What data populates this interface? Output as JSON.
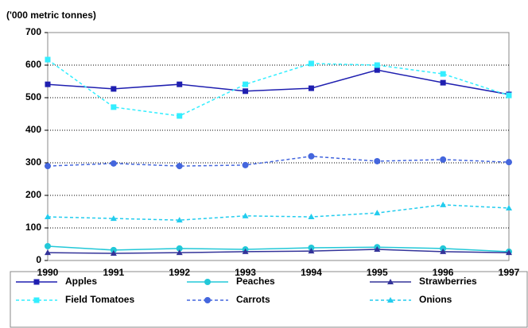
{
  "chart_data": {
    "type": "line",
    "y_axis_label": "('000 metric tonnes)",
    "categories": [
      "1990",
      "1991",
      "1992",
      "1993",
      "1994",
      "1995",
      "1996",
      "1997"
    ],
    "ylim": [
      0,
      700
    ],
    "yticks": [
      0,
      100,
      200,
      300,
      400,
      500,
      600,
      700
    ],
    "grid": true,
    "legend": "bottom",
    "series": [
      {
        "name": "Apples",
        "color": "#1f1fb0",
        "dash": "solid",
        "marker": "square",
        "values": [
          541,
          527,
          541,
          520,
          529,
          585,
          546,
          510
        ]
      },
      {
        "name": "Peaches",
        "color": "#22c8d8",
        "dash": "solid",
        "marker": "circle",
        "values": [
          44,
          32,
          37,
          34,
          39,
          41,
          37,
          27
        ]
      },
      {
        "name": "Strawberries",
        "color": "#333399",
        "dash": "solid",
        "marker": "triangle",
        "values": [
          24,
          22,
          24,
          27,
          29,
          34,
          27,
          24
        ]
      },
      {
        "name": "Field Tomatoes",
        "color": "#33eeff",
        "dash": "dashed",
        "marker": "square",
        "values": [
          617,
          471,
          444,
          541,
          605,
          600,
          573,
          507
        ]
      },
      {
        "name": "Carrots",
        "color": "#4466dd",
        "dash": "dashed",
        "marker": "circle",
        "values": [
          290,
          298,
          290,
          293,
          320,
          305,
          310,
          302
        ]
      },
      {
        "name": "Onions",
        "color": "#22ccee",
        "dash": "dashed",
        "marker": "triangle",
        "values": [
          134,
          129,
          124,
          137,
          134,
          146,
          171,
          161
        ]
      }
    ]
  }
}
